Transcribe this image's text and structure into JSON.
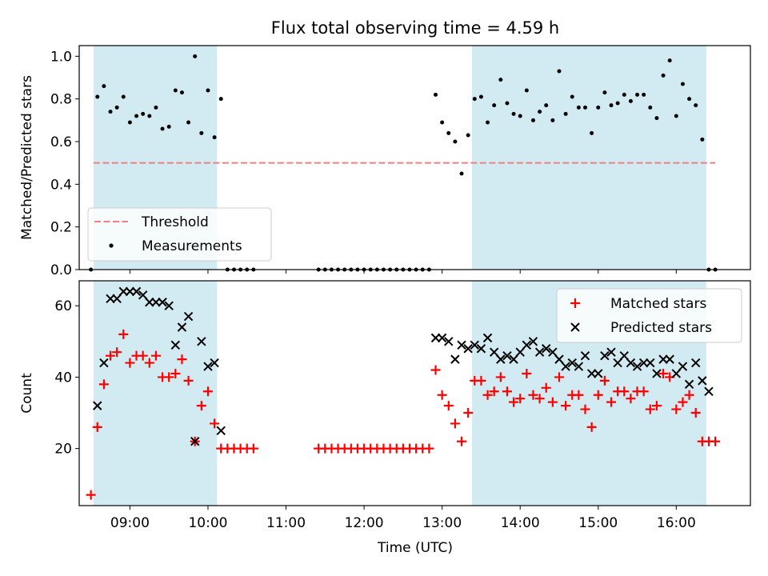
{
  "title": "Flux total observing time = 4.59 h",
  "colors": {
    "band": "#add8e6",
    "threshold": "#f08080",
    "measurement": "#000000",
    "matched": "#ff0000",
    "predicted": "#000000"
  },
  "chart_data": [
    {
      "type": "scatter",
      "ylabel": "Matched/Predicted stars",
      "xlim": [
        "08:21",
        "16:57"
      ],
      "ylim": [
        0,
        1.05
      ],
      "yticks": [
        0.0,
        0.2,
        0.4,
        0.6,
        0.8,
        1.0
      ],
      "ytick_labels": [
        "0.0",
        "0.2",
        "0.4",
        "0.6",
        "0.8",
        "1.0"
      ],
      "legend_position": "lower-left",
      "legend": [
        {
          "name": "Threshold",
          "style": "dashed-line"
        },
        {
          "name": "Measurements",
          "style": "dot"
        }
      ],
      "shaded_intervals": [
        [
          "08:32",
          "10:07"
        ],
        [
          "13:23",
          "16:23"
        ]
      ],
      "threshold": {
        "y": 0.5,
        "x": [
          "08:32",
          "16:30"
        ]
      },
      "series": [
        {
          "name": "Measurements",
          "points": [
            [
              "08:30",
              0.0
            ],
            [
              "08:35",
              0.81
            ],
            [
              "08:40",
              0.86
            ],
            [
              "08:45",
              0.74
            ],
            [
              "08:50",
              0.76
            ],
            [
              "08:55",
              0.81
            ],
            [
              "09:00",
              0.69
            ],
            [
              "09:05",
              0.72
            ],
            [
              "09:10",
              0.73
            ],
            [
              "09:15",
              0.72
            ],
            [
              "09:20",
              0.76
            ],
            [
              "09:25",
              0.66
            ],
            [
              "09:30",
              0.67
            ],
            [
              "09:35",
              0.84
            ],
            [
              "09:40",
              0.83
            ],
            [
              "09:45",
              0.69
            ],
            [
              "09:50",
              1.0
            ],
            [
              "09:55",
              0.64
            ],
            [
              "10:00",
              0.84
            ],
            [
              "10:05",
              0.62
            ],
            [
              "10:10",
              0.8
            ],
            [
              "10:15",
              0.0
            ],
            [
              "10:20",
              0.0
            ],
            [
              "10:25",
              0.0
            ],
            [
              "10:30",
              0.0
            ],
            [
              "10:35",
              0.0
            ],
            [
              "11:25",
              0.0
            ],
            [
              "11:30",
              0.0
            ],
            [
              "11:35",
              0.0
            ],
            [
              "11:40",
              0.0
            ],
            [
              "11:45",
              0.0
            ],
            [
              "11:50",
              0.0
            ],
            [
              "11:55",
              0.0
            ],
            [
              "12:00",
              0.0
            ],
            [
              "12:05",
              0.0
            ],
            [
              "12:10",
              0.0
            ],
            [
              "12:15",
              0.0
            ],
            [
              "12:20",
              0.0
            ],
            [
              "12:25",
              0.0
            ],
            [
              "12:30",
              0.0
            ],
            [
              "12:35",
              0.0
            ],
            [
              "12:40",
              0.0
            ],
            [
              "12:45",
              0.0
            ],
            [
              "12:50",
              0.0
            ],
            [
              "12:55",
              0.82
            ],
            [
              "13:00",
              0.69
            ],
            [
              "13:05",
              0.64
            ],
            [
              "13:10",
              0.6
            ],
            [
              "13:15",
              0.45
            ],
            [
              "13:20",
              0.63
            ],
            [
              "13:25",
              0.8
            ],
            [
              "13:30",
              0.81
            ],
            [
              "13:35",
              0.69
            ],
            [
              "13:40",
              0.77
            ],
            [
              "13:45",
              0.89
            ],
            [
              "13:50",
              0.78
            ],
            [
              "13:55",
              0.73
            ],
            [
              "14:00",
              0.72
            ],
            [
              "14:05",
              0.84
            ],
            [
              "14:10",
              0.7
            ],
            [
              "14:15",
              0.74
            ],
            [
              "14:20",
              0.77
            ],
            [
              "14:25",
              0.7
            ],
            [
              "14:30",
              0.93
            ],
            [
              "14:35",
              0.73
            ],
            [
              "14:40",
              0.81
            ],
            [
              "14:45",
              0.76
            ],
            [
              "14:50",
              0.76
            ],
            [
              "14:55",
              0.64
            ],
            [
              "15:00",
              0.76
            ],
            [
              "15:05",
              0.83
            ],
            [
              "15:10",
              0.77
            ],
            [
              "15:15",
              0.78
            ],
            [
              "15:20",
              0.82
            ],
            [
              "15:25",
              0.79
            ],
            [
              "15:30",
              0.82
            ],
            [
              "15:35",
              0.82
            ],
            [
              "15:40",
              0.76
            ],
            [
              "15:45",
              0.71
            ],
            [
              "15:50",
              0.91
            ],
            [
              "15:55",
              0.98
            ],
            [
              "16:00",
              0.72
            ],
            [
              "16:05",
              0.87
            ],
            [
              "16:10",
              0.8
            ],
            [
              "16:15",
              0.77
            ],
            [
              "16:20",
              0.61
            ],
            [
              "16:25",
              0.0
            ],
            [
              "16:30",
              0.0
            ]
          ]
        }
      ]
    },
    {
      "type": "scatter",
      "ylabel": "Count",
      "xlabel": "Time (UTC)",
      "xlim": [
        "08:21",
        "16:57"
      ],
      "ylim": [
        4,
        67
      ],
      "yticks": [
        20,
        40,
        60
      ],
      "ytick_labels": [
        "20",
        "40",
        "60"
      ],
      "xticks": [
        "09:00",
        "10:00",
        "11:00",
        "12:00",
        "13:00",
        "14:00",
        "15:00",
        "16:00"
      ],
      "xtick_labels": [
        "09:00",
        "10:00",
        "11:00",
        "12:00",
        "13:00",
        "14:00",
        "15:00",
        "16:00"
      ],
      "legend_position": "upper-right",
      "legend": [
        {
          "name": "Matched stars",
          "style": "plus"
        },
        {
          "name": "Predicted stars",
          "style": "x"
        }
      ],
      "shaded_intervals": [
        [
          "08:32",
          "10:07"
        ],
        [
          "13:23",
          "16:23"
        ]
      ],
      "series": [
        {
          "name": "Matched stars",
          "points": [
            [
              "08:30",
              7
            ],
            [
              "08:35",
              26
            ],
            [
              "08:40",
              38
            ],
            [
              "08:45",
              46
            ],
            [
              "08:50",
              47
            ],
            [
              "08:55",
              52
            ],
            [
              "09:00",
              44
            ],
            [
              "09:05",
              46
            ],
            [
              "09:10",
              46
            ],
            [
              "09:15",
              44
            ],
            [
              "09:20",
              46
            ],
            [
              "09:25",
              40
            ],
            [
              "09:30",
              40
            ],
            [
              "09:35",
              41
            ],
            [
              "09:40",
              45
            ],
            [
              "09:45",
              39
            ],
            [
              "09:50",
              22
            ],
            [
              "09:55",
              32
            ],
            [
              "10:00",
              36
            ],
            [
              "10:05",
              27
            ],
            [
              "10:10",
              20
            ],
            [
              "10:15",
              20
            ],
            [
              "10:20",
              20
            ],
            [
              "10:25",
              20
            ],
            [
              "10:30",
              20
            ],
            [
              "10:35",
              20
            ],
            [
              "11:25",
              20
            ],
            [
              "11:30",
              20
            ],
            [
              "11:35",
              20
            ],
            [
              "11:40",
              20
            ],
            [
              "11:45",
              20
            ],
            [
              "11:50",
              20
            ],
            [
              "11:55",
              20
            ],
            [
              "12:00",
              20
            ],
            [
              "12:05",
              20
            ],
            [
              "12:10",
              20
            ],
            [
              "12:15",
              20
            ],
            [
              "12:20",
              20
            ],
            [
              "12:25",
              20
            ],
            [
              "12:30",
              20
            ],
            [
              "12:35",
              20
            ],
            [
              "12:40",
              20
            ],
            [
              "12:45",
              20
            ],
            [
              "12:50",
              20
            ],
            [
              "12:55",
              42
            ],
            [
              "13:00",
              35
            ],
            [
              "13:05",
              32
            ],
            [
              "13:10",
              27
            ],
            [
              "13:15",
              22
            ],
            [
              "13:20",
              30
            ],
            [
              "13:25",
              39
            ],
            [
              "13:30",
              39
            ],
            [
              "13:35",
              35
            ],
            [
              "13:40",
              36
            ],
            [
              "13:45",
              40
            ],
            [
              "13:50",
              36
            ],
            [
              "13:55",
              33
            ],
            [
              "14:00",
              34
            ],
            [
              "14:05",
              41
            ],
            [
              "14:10",
              35
            ],
            [
              "14:15",
              34
            ],
            [
              "14:20",
              37
            ],
            [
              "14:25",
              33
            ],
            [
              "14:30",
              40
            ],
            [
              "14:35",
              32
            ],
            [
              "14:40",
              35
            ],
            [
              "14:45",
              35
            ],
            [
              "14:50",
              31
            ],
            [
              "14:55",
              26
            ],
            [
              "15:00",
              35
            ],
            [
              "15:05",
              39
            ],
            [
              "15:10",
              33
            ],
            [
              "15:15",
              36
            ],
            [
              "15:20",
              36
            ],
            [
              "15:25",
              34
            ],
            [
              "15:30",
              36
            ],
            [
              "15:35",
              36
            ],
            [
              "15:40",
              31
            ],
            [
              "15:45",
              32
            ],
            [
              "15:50",
              41
            ],
            [
              "15:55",
              40
            ],
            [
              "16:00",
              31
            ],
            [
              "16:05",
              33
            ],
            [
              "16:10",
              35
            ],
            [
              "16:15",
              30
            ],
            [
              "16:20",
              22
            ],
            [
              "16:25",
              22
            ],
            [
              "16:30",
              22
            ]
          ]
        },
        {
          "name": "Predicted stars",
          "points": [
            [
              "08:35",
              32
            ],
            [
              "08:40",
              44
            ],
            [
              "08:45",
              62
            ],
            [
              "08:50",
              62
            ],
            [
              "08:55",
              64
            ],
            [
              "09:00",
              64
            ],
            [
              "09:05",
              64
            ],
            [
              "09:10",
              63
            ],
            [
              "09:15",
              61
            ],
            [
              "09:20",
              61
            ],
            [
              "09:25",
              61
            ],
            [
              "09:30",
              60
            ],
            [
              "09:35",
              49
            ],
            [
              "09:40",
              54
            ],
            [
              "09:45",
              57
            ],
            [
              "09:50",
              22
            ],
            [
              "09:55",
              50
            ],
            [
              "10:00",
              43
            ],
            [
              "10:05",
              44
            ],
            [
              "10:10",
              25
            ],
            [
              "12:55",
              51
            ],
            [
              "13:00",
              51
            ],
            [
              "13:05",
              50
            ],
            [
              "13:10",
              45
            ],
            [
              "13:15",
              49
            ],
            [
              "13:20",
              48
            ],
            [
              "13:25",
              49
            ],
            [
              "13:30",
              48
            ],
            [
              "13:35",
              51
            ],
            [
              "13:40",
              47
            ],
            [
              "13:45",
              45
            ],
            [
              "13:50",
              46
            ],
            [
              "13:55",
              45
            ],
            [
              "14:00",
              47
            ],
            [
              "14:05",
              49
            ],
            [
              "14:10",
              50
            ],
            [
              "14:15",
              47
            ],
            [
              "14:20",
              48
            ],
            [
              "14:25",
              47
            ],
            [
              "14:30",
              45
            ],
            [
              "14:35",
              43
            ],
            [
              "14:40",
              44
            ],
            [
              "14:45",
              43
            ],
            [
              "14:50",
              46
            ],
            [
              "14:55",
              41
            ],
            [
              "15:00",
              41
            ],
            [
              "15:05",
              46
            ],
            [
              "15:10",
              47
            ],
            [
              "15:15",
              44
            ],
            [
              "15:20",
              46
            ],
            [
              "15:25",
              44
            ],
            [
              "15:30",
              43
            ],
            [
              "15:35",
              44
            ],
            [
              "15:40",
              44
            ],
            [
              "15:45",
              41
            ],
            [
              "15:50",
              45
            ],
            [
              "15:55",
              45
            ],
            [
              "16:00",
              41
            ],
            [
              "16:05",
              43
            ],
            [
              "16:10",
              38
            ],
            [
              "16:15",
              44
            ],
            [
              "16:20",
              39
            ],
            [
              "16:25",
              36
            ]
          ]
        }
      ]
    }
  ]
}
